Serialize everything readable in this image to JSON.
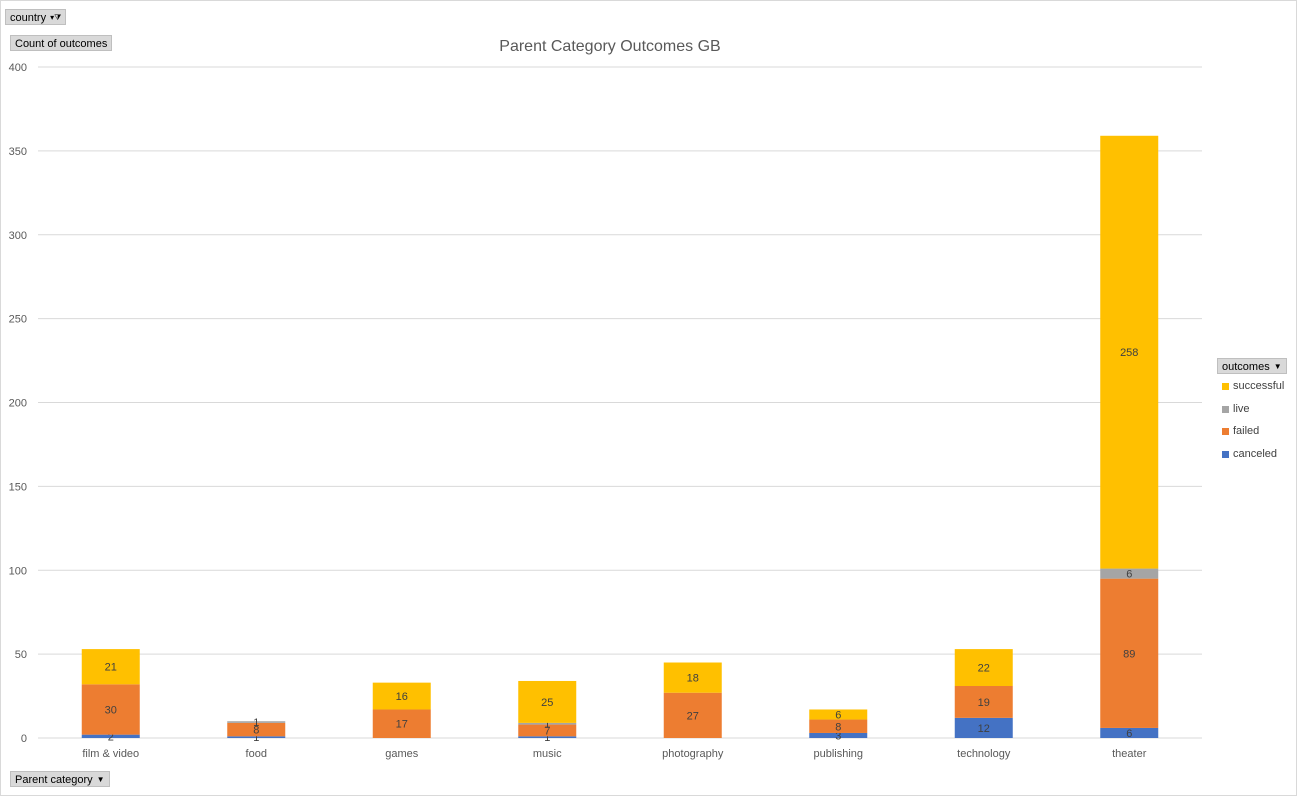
{
  "filters": {
    "country_label": "country",
    "values_label": "Count of outcomes",
    "axis_field_label": "Parent category",
    "legend_field_label": "outcomes"
  },
  "chart_data": {
    "type": "bar",
    "stacked": true,
    "title": "Parent Category Outcomes GB",
    "xlabel": "",
    "ylabel": "",
    "ylim": [
      0,
      400
    ],
    "yticks": [
      0,
      50,
      100,
      150,
      200,
      250,
      300,
      350,
      400
    ],
    "grid": true,
    "legend": "right",
    "categories": [
      "film & video",
      "food",
      "games",
      "music",
      "photography",
      "publishing",
      "technology",
      "theater"
    ],
    "series": [
      {
        "name": "canceled",
        "color": "#4472c4",
        "values": [
          2,
          1,
          0,
          1,
          0,
          3,
          12,
          6
        ]
      },
      {
        "name": "failed",
        "color": "#ed7d31",
        "values": [
          30,
          8,
          17,
          7,
          27,
          8,
          19,
          89
        ]
      },
      {
        "name": "live",
        "color": "#a5a5a5",
        "values": [
          0,
          1,
          0,
          1,
          0,
          0,
          0,
          6
        ]
      },
      {
        "name": "successful",
        "color": "#ffc000",
        "values": [
          21,
          0,
          16,
          25,
          18,
          6,
          22,
          258
        ]
      }
    ],
    "legend_order": [
      "successful",
      "live",
      "failed",
      "canceled"
    ]
  }
}
